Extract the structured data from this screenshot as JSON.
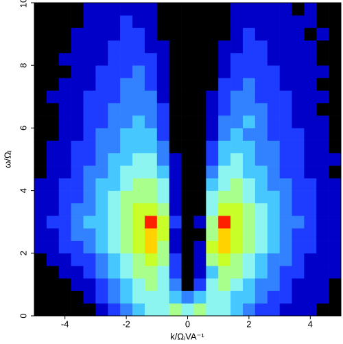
{
  "chart_data": {
    "type": "heatmap",
    "xlabel": "k/ΩᵢVA⁻¹",
    "ylabel": "ω/Ωᵢ",
    "xlim": [
      -5,
      5
    ],
    "ylim": [
      0,
      10
    ],
    "xticks": [
      -4,
      -2,
      0,
      2,
      4
    ],
    "yticks": [
      0,
      2,
      4,
      6,
      8,
      10
    ],
    "colors": [
      "#000000",
      "#0000c8",
      "#1e3cff",
      "#3282ff",
      "#46c8ff",
      "#8cf5f0",
      "#a8ff8c",
      "#c8ff28",
      "#ffd200",
      "#ff2000"
    ],
    "z": [
      [
        0,
        0,
        0,
        0,
        0,
        1,
        2,
        3,
        4,
        5,
        5,
        6,
        5,
        6,
        5,
        5,
        4,
        3,
        2,
        2,
        1,
        1,
        1,
        0,
        0
      ],
      [
        0,
        0,
        0,
        0,
        1,
        2,
        3,
        4,
        5,
        5,
        5,
        4,
        3,
        4,
        5,
        5,
        4,
        4,
        3,
        2,
        2,
        1,
        1,
        1,
        0
      ],
      [
        0,
        0,
        0,
        1,
        1,
        2,
        3,
        4,
        5,
        6,
        5,
        3,
        0,
        2,
        5,
        6,
        5,
        4,
        3,
        3,
        2,
        1,
        1,
        1,
        0
      ],
      [
        0,
        0,
        1,
        1,
        2,
        3,
        4,
        5,
        6,
        6,
        5,
        2,
        0,
        1,
        4,
        6,
        6,
        5,
        4,
        3,
        2,
        2,
        1,
        1,
        1
      ],
      [
        0,
        1,
        1,
        2,
        2,
        3,
        4,
        5,
        6,
        7,
        6,
        2,
        0,
        1,
        6,
        7,
        6,
        5,
        4,
        3,
        3,
        2,
        1,
        1,
        1
      ],
      [
        1,
        1,
        2,
        2,
        3,
        4,
        5,
        6,
        7,
        8,
        6,
        1,
        0,
        1,
        7,
        8,
        7,
        6,
        5,
        4,
        3,
        2,
        2,
        1,
        1
      ],
      [
        1,
        1,
        2,
        3,
        3,
        4,
        5,
        6,
        7,
        8,
        7,
        1,
        0,
        0,
        6,
        8,
        7,
        6,
        5,
        4,
        3,
        2,
        2,
        1,
        1
      ],
      [
        1,
        2,
        2,
        3,
        4,
        4,
        5,
        6,
        7,
        9,
        7,
        2,
        0,
        1,
        6,
        9,
        7,
        6,
        5,
        4,
        3,
        3,
        2,
        1,
        1
      ],
      [
        1,
        1,
        2,
        3,
        3,
        4,
        5,
        6,
        7,
        7,
        6,
        1,
        0,
        0,
        5,
        7,
        7,
        6,
        5,
        4,
        3,
        2,
        2,
        1,
        1
      ],
      [
        1,
        1,
        2,
        2,
        3,
        4,
        5,
        6,
        6,
        6,
        5,
        1,
        0,
        0,
        5,
        6,
        6,
        5,
        4,
        4,
        3,
        2,
        2,
        1,
        1
      ],
      [
        1,
        1,
        2,
        2,
        3,
        4,
        4,
        5,
        6,
        6,
        5,
        1,
        0,
        0,
        4,
        5,
        6,
        5,
        4,
        3,
        3,
        2,
        2,
        1,
        1
      ],
      [
        0,
        1,
        1,
        2,
        3,
        3,
        4,
        5,
        5,
        5,
        4,
        1,
        0,
        0,
        3,
        5,
        5,
        4,
        4,
        3,
        2,
        2,
        1,
        1,
        0
      ],
      [
        0,
        1,
        1,
        2,
        2,
        3,
        4,
        4,
        5,
        5,
        3,
        1,
        0,
        0,
        2,
        4,
        5,
        4,
        3,
        3,
        2,
        2,
        1,
        1,
        1
      ],
      [
        0,
        1,
        1,
        2,
        2,
        3,
        3,
        4,
        4,
        4,
        3,
        0,
        0,
        0,
        2,
        4,
        4,
        4,
        3,
        3,
        2,
        2,
        1,
        1,
        0
      ],
      [
        0,
        0,
        1,
        1,
        2,
        3,
        3,
        4,
        4,
        4,
        2,
        0,
        0,
        0,
        1,
        3,
        4,
        3,
        3,
        2,
        2,
        2,
        1,
        1,
        0
      ],
      [
        0,
        0,
        1,
        1,
        2,
        2,
        3,
        3,
        4,
        3,
        2,
        0,
        0,
        0,
        1,
        3,
        3,
        4,
        3,
        2,
        2,
        1,
        1,
        1,
        0
      ],
      [
        0,
        0,
        1,
        1,
        2,
        2,
        3,
        3,
        3,
        3,
        2,
        0,
        0,
        0,
        1,
        2,
        3,
        3,
        3,
        2,
        2,
        1,
        1,
        0,
        0
      ],
      [
        0,
        1,
        1,
        1,
        2,
        2,
        2,
        3,
        3,
        3,
        1,
        0,
        0,
        0,
        1,
        2,
        3,
        3,
        2,
        2,
        2,
        1,
        1,
        1,
        0
      ],
      [
        0,
        0,
        1,
        1,
        1,
        2,
        2,
        3,
        3,
        2,
        1,
        0,
        0,
        0,
        0,
        2,
        2,
        3,
        2,
        2,
        1,
        1,
        1,
        0,
        0
      ],
      [
        0,
        0,
        0,
        1,
        1,
        2,
        2,
        2,
        3,
        2,
        1,
        0,
        0,
        0,
        0,
        1,
        2,
        2,
        2,
        2,
        1,
        1,
        1,
        1,
        0
      ],
      [
        0,
        0,
        1,
        1,
        1,
        1,
        2,
        2,
        2,
        2,
        1,
        0,
        0,
        0,
        0,
        1,
        2,
        2,
        2,
        1,
        1,
        1,
        1,
        0,
        0
      ],
      [
        0,
        0,
        0,
        1,
        1,
        1,
        2,
        2,
        2,
        1,
        1,
        0,
        0,
        0,
        0,
        1,
        1,
        2,
        2,
        1,
        1,
        1,
        1,
        0,
        0
      ],
      [
        0,
        0,
        0,
        1,
        1,
        1,
        1,
        2,
        2,
        1,
        0,
        0,
        0,
        0,
        0,
        0,
        1,
        2,
        1,
        1,
        1,
        1,
        0,
        1,
        0
      ],
      [
        0,
        0,
        0,
        0,
        1,
        1,
        1,
        2,
        1,
        1,
        0,
        0,
        0,
        0,
        0,
        0,
        1,
        1,
        1,
        1,
        1,
        1,
        1,
        0,
        0
      ],
      [
        0,
        0,
        0,
        0,
        1,
        1,
        1,
        1,
        1,
        1,
        0,
        0,
        0,
        0,
        0,
        0,
        1,
        1,
        1,
        1,
        1,
        0,
        1,
        0,
        0
      ]
    ]
  }
}
